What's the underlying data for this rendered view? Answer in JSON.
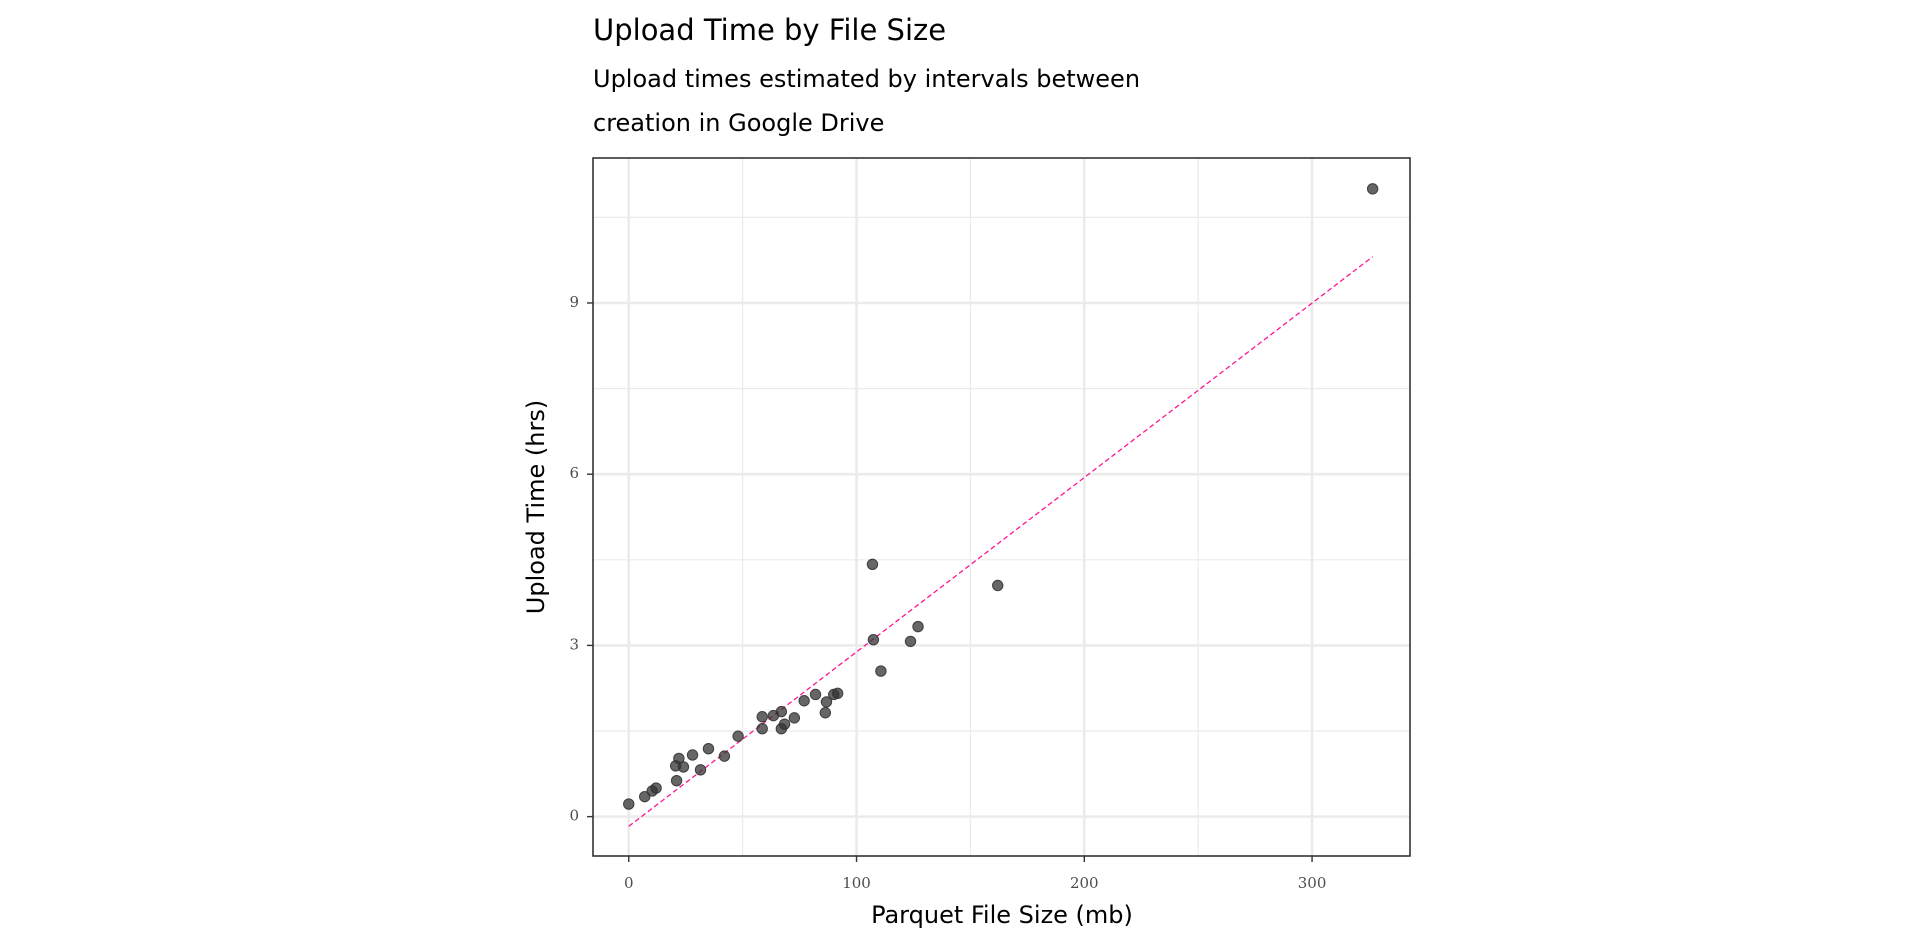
{
  "chart_data": {
    "type": "scatter",
    "title": "Upload Time by File Size",
    "subtitle": [
      "Upload times estimated by intervals between",
      "creation in Google Drive"
    ],
    "x_label": "Parquet File Size (mb)",
    "y_label": "Upload Time (hrs)",
    "xlim": [
      -15.7,
      343
    ],
    "ylim": [
      -0.69,
      11.54
    ],
    "xticks": [
      0,
      100,
      200,
      300
    ],
    "yticks": [
      0,
      3,
      6,
      9
    ],
    "x_minor_ticks": [
      50,
      150,
      250
    ],
    "y_minor_ticks": [
      1.5,
      4.5,
      7.5,
      10.5
    ],
    "grid": true,
    "series": [
      {
        "color": "#333333",
        "x": [
          0,
          7,
          10.3,
          12,
          20.6,
          22,
          21,
          24,
          28,
          31.5,
          35,
          42,
          48,
          58.6,
          58.6,
          63.5,
          67,
          67,
          68.4,
          72.7,
          77,
          82,
          86.8,
          86.3,
          90,
          91.7,
          107,
          107.4,
          110.7,
          123.7,
          127,
          162,
          326.6
        ],
        "values": [
          0.22,
          0.35,
          0.45,
          0.5,
          0.89,
          1.02,
          0.63,
          0.87,
          1.08,
          0.82,
          1.19,
          1.06,
          1.41,
          1.75,
          1.54,
          1.77,
          1.84,
          1.54,
          1.62,
          1.73,
          2.03,
          2.14,
          2.01,
          1.82,
          2.14,
          2.16,
          4.42,
          3.1,
          2.55,
          3.07,
          3.33,
          4.05,
          11.0
        ]
      }
    ],
    "trend_line": {
      "color": "#ff1493",
      "x": [
        0,
        326.6
      ],
      "values": [
        -0.17,
        9.81
      ]
    }
  }
}
